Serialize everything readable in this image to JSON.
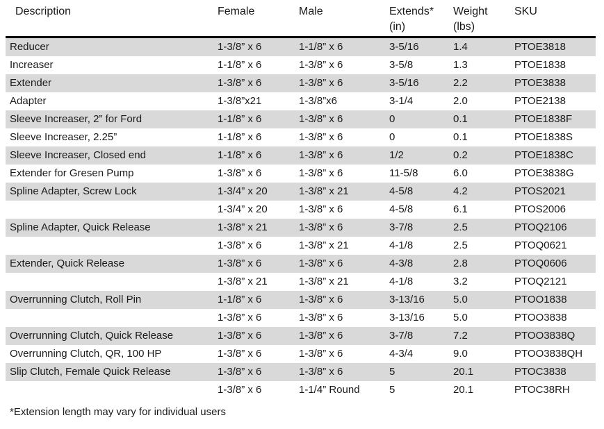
{
  "colors": {
    "stripe": "#d9d9d9",
    "text": "#1a1a1a",
    "header_rule": "#000000",
    "background": "#ffffff"
  },
  "table": {
    "columns": [
      {
        "key": "description",
        "label": "Description",
        "sub": ""
      },
      {
        "key": "female",
        "label": "Female",
        "sub": ""
      },
      {
        "key": "male",
        "label": "Male",
        "sub": ""
      },
      {
        "key": "extends",
        "label": "Extends*",
        "sub": "(in)"
      },
      {
        "key": "weight",
        "label": "Weight",
        "sub": "(lbs)"
      },
      {
        "key": "sku",
        "label": "SKU",
        "sub": ""
      }
    ],
    "rows": [
      {
        "description": "Reducer",
        "female": "1-3/8” x 6",
        "male": "1-1/8” x 6",
        "extends": "3-5/16",
        "weight": "1.4",
        "sku": "PTOE3818"
      },
      {
        "description": "Increaser",
        "female": "1-1/8” x 6",
        "male": "1-3/8” x 6",
        "extends": "3-5/8",
        "weight": "1.3",
        "sku": "PTOE1838"
      },
      {
        "description": "Extender",
        "female": "1-3/8” x 6",
        "male": "1-3/8” x 6",
        "extends": "3-5/16",
        "weight": "2.2",
        "sku": "PTOE3838"
      },
      {
        "description": "Adapter",
        "female": "1-3/8”x21",
        "male": "1-3/8”x6",
        "extends": "3-1/4",
        "weight": "2.0",
        "sku": "PTOE2138"
      },
      {
        "description": "Sleeve Increaser, 2” for Ford",
        "female": "1-1/8” x 6",
        "male": "1-3/8” x 6",
        "extends": "0",
        "weight": "0.1",
        "sku": "PTOE1838F"
      },
      {
        "description": "Sleeve Increaser, 2.25”",
        "female": "1-1/8” x 6",
        "male": "1-3/8” x 6",
        "extends": "0",
        "weight": "0.1",
        "sku": "PTOE1838S"
      },
      {
        "description": "Sleeve Increaser, Closed end",
        "female": "1-1/8” x 6",
        "male": "1-3/8” x 6",
        "extends": "1/2",
        "weight": "0.2",
        "sku": "PTOE1838C"
      },
      {
        "description": "Extender for Gresen Pump",
        "female": "1-3/8” x 6",
        "male": "1-3/8” x 6",
        "extends": "11-5/8",
        "weight": "6.0",
        "sku": "PTOE3838G"
      },
      {
        "description": "Spline Adapter, Screw Lock",
        "female": "1-3/4” x 20",
        "male": "1-3/8” x 21",
        "extends": "4-5/8",
        "weight": "4.2",
        "sku": "PTOS2021"
      },
      {
        "description": "",
        "female": "1-3/4” x 20",
        "male": "1-3/8” x 6",
        "extends": "4-5/8",
        "weight": "6.1",
        "sku": "PTOS2006"
      },
      {
        "description": "Spline Adapter, Quick Release",
        "female": "1-3/8” x 21",
        "male": "1-3/8” x 6",
        "extends": "3-7/8",
        "weight": "2.5",
        "sku": "PTOQ2106"
      },
      {
        "description": "",
        "female": "1-3/8” x 6",
        "male": "1-3/8” x 21",
        "extends": "4-1/8",
        "weight": "2.5",
        "sku": "PTOQ0621"
      },
      {
        "description": "Extender, Quick Release",
        "female": "1-3/8” x 6",
        "male": "1-3/8” x 6",
        "extends": "4-3/8",
        "weight": "2.8",
        "sku": "PTOQ0606"
      },
      {
        "description": "",
        "female": "1-3/8” x 21",
        "male": "1-3/8” x 21",
        "extends": "4-1/8",
        "weight": "3.2",
        "sku": "PTOQ2121"
      },
      {
        "description": "Overrunning Clutch, Roll Pin",
        "female": "1-1/8” x 6",
        "male": "1-3/8” x 6",
        "extends": "3-13/16",
        "weight": "5.0",
        "sku": "PTOO1838"
      },
      {
        "description": "",
        "female": "1-3/8” x 6",
        "male": "1-3/8” x 6",
        "extends": "3-13/16",
        "weight": "5.0",
        "sku": "PTOO3838"
      },
      {
        "description": "Overrunning Clutch, Quick Release",
        "female": "1-3/8” x 6",
        "male": "1-3/8” x 6",
        "extends": "3-7/8",
        "weight": "7.2",
        "sku": "PTOO3838Q"
      },
      {
        "description": "Overrunning Clutch, QR, 100 HP",
        "female": "1-3/8” x 6",
        "male": "1-3/8” x 6",
        "extends": "4-3/4",
        "weight": "9.0",
        "sku": "PTOO3838QH"
      },
      {
        "description": "Slip Clutch, Female Quick Release",
        "female": "1-3/8” x 6",
        "male": "1-3/8” x 6",
        "extends": "5",
        "weight": "20.1",
        "sku": "PTOC3838"
      },
      {
        "description": "",
        "female": "1-3/8” x 6",
        "male": "1-1/4” Round",
        "extends": "5",
        "weight": "20.1",
        "sku": "PTOC38RH"
      }
    ],
    "footnote": "*Extension length may vary for individual users"
  }
}
